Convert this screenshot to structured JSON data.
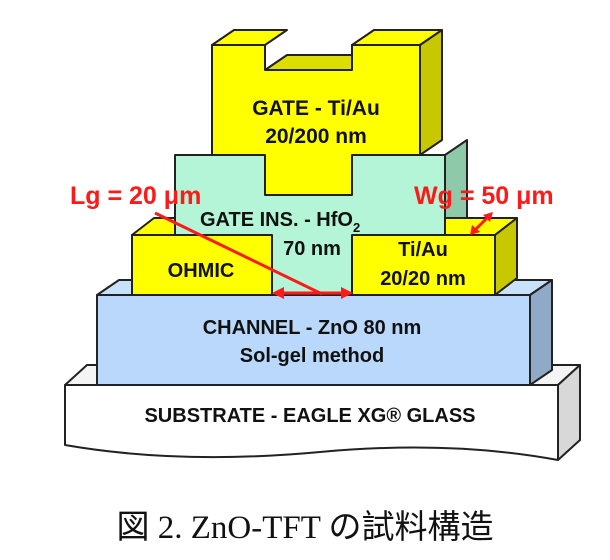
{
  "diagram": {
    "layers": {
      "substrate": "SUBSTRATE - EAGLE XG® GLASS",
      "channel_line1": "CHANNEL - ZnO 80 nm",
      "channel_line2": "Sol-gel method",
      "ohmic": "OHMIC",
      "contact_line1": "Ti/Au",
      "contact_line2": "20/20 nm",
      "gate_ins_line1": "GATE INS. - HfO",
      "gate_ins_subscript": "2",
      "gate_ins_line2": "70 nm",
      "gate_line1": "GATE - Ti/Au",
      "gate_line2": "20/200 nm"
    },
    "annotations": {
      "lg": "Lg = 20 μm",
      "wg": "Wg = 50 μm"
    },
    "colors": {
      "gate_yellow": "#ffff00",
      "insulator_green": "#b3f5d6",
      "channel_blue": "#b9d8fb",
      "annotation_red": "#ff1a1a"
    }
  },
  "caption": "図 2.  ZnO-TFT の試料構造"
}
